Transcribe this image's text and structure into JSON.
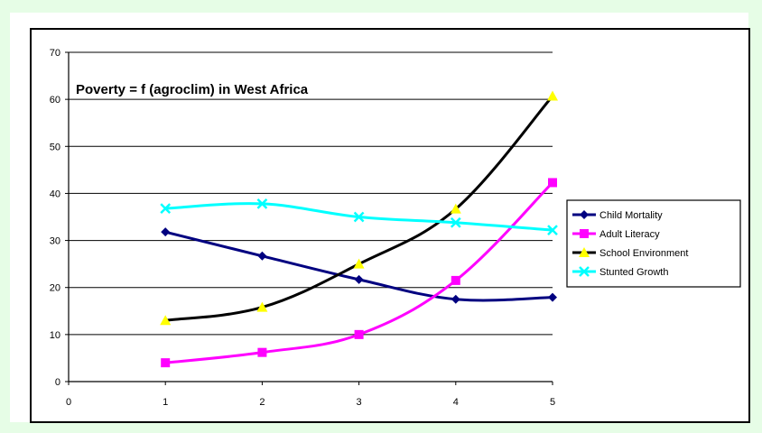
{
  "chart_data": {
    "type": "line",
    "title": "Poverty = f (agroclim) in West Africa",
    "x": [
      1,
      2,
      3,
      4,
      5
    ],
    "xlim": [
      0,
      5
    ],
    "ylim": [
      0,
      70
    ],
    "x_ticks": [
      "0",
      "1",
      "2",
      "3",
      "4",
      "5"
    ],
    "y_ticks": [
      "0",
      "10",
      "20",
      "30",
      "40",
      "50",
      "60",
      "70"
    ],
    "grid": "horizontal",
    "legend_position": "right",
    "series": [
      {
        "name": "Child Mortality",
        "values": [
          31.8,
          26.7,
          21.7,
          17.5,
          17.9
        ],
        "color": "#000080",
        "marker": "diamond"
      },
      {
        "name": "Adult Literacy",
        "values": [
          4.0,
          6.2,
          10.0,
          21.5,
          42.3
        ],
        "color": "#ff00ff",
        "marker": "square"
      },
      {
        "name": "School Environment",
        "values": [
          13.0,
          15.8,
          25.0,
          36.7,
          60.7
        ],
        "color": "#000000",
        "marker": "triangle",
        "marker_color": "#ffff00"
      },
      {
        "name": "Stunted Growth",
        "values": [
          36.8,
          37.8,
          35.0,
          33.8,
          32.2
        ],
        "color": "#00ffff",
        "marker": "x"
      }
    ]
  }
}
